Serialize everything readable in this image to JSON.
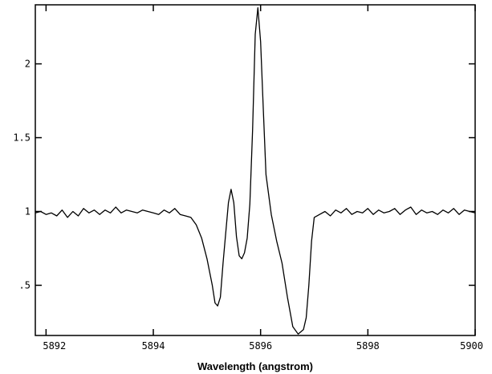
{
  "chart_data": {
    "type": "line",
    "title": "",
    "xlabel": "Wavelength (angstrom)",
    "ylabel": "",
    "xlim": [
      5891.8,
      5900
    ],
    "ylim": [
      0.16,
      2.4
    ],
    "grid": false,
    "x_ticks": [
      5892,
      5894,
      5896,
      5898,
      5900
    ],
    "x_tick_labels": [
      "5892",
      "5894",
      "5896",
      "5898",
      "5900"
    ],
    "y_ticks": [
      0.5,
      1,
      1.5,
      2
    ],
    "y_tick_labels": [
      ".5",
      "1",
      "1.5",
      "2"
    ],
    "series": [
      {
        "color": "#000000",
        "x": [
          5891.8,
          5891.9,
          5892.0,
          5892.1,
          5892.2,
          5892.3,
          5892.4,
          5892.5,
          5892.6,
          5892.7,
          5892.8,
          5892.9,
          5893.0,
          5893.1,
          5893.2,
          5893.3,
          5893.4,
          5893.5,
          5893.6,
          5893.7,
          5893.8,
          5893.9,
          5894.0,
          5894.1,
          5894.2,
          5894.3,
          5894.4,
          5894.5,
          5894.6,
          5894.7,
          5894.8,
          5894.9,
          5895.0,
          5895.1,
          5895.15,
          5895.2,
          5895.25,
          5895.3,
          5895.4,
          5895.45,
          5895.5,
          5895.55,
          5895.6,
          5895.65,
          5895.7,
          5895.75,
          5895.8,
          5895.85,
          5895.9,
          5895.95,
          5896.0,
          5896.05,
          5896.1,
          5896.2,
          5896.3,
          5896.4,
          5896.5,
          5896.6,
          5896.7,
          5896.8,
          5896.85,
          5896.9,
          5896.95,
          5897.0,
          5897.1,
          5897.2,
          5897.3,
          5897.4,
          5897.5,
          5897.6,
          5897.7,
          5897.8,
          5897.9,
          5898.0,
          5898.1,
          5898.2,
          5898.3,
          5898.4,
          5898.5,
          5898.6,
          5898.7,
          5898.8,
          5898.9,
          5899.0,
          5899.1,
          5899.2,
          5899.3,
          5899.4,
          5899.5,
          5899.6,
          5899.7,
          5899.8,
          5899.9,
          5900.0
        ],
        "y": [
          0.99,
          1.0,
          0.98,
          0.99,
          0.97,
          1.01,
          0.96,
          1.0,
          0.97,
          1.02,
          0.99,
          1.01,
          0.98,
          1.01,
          0.99,
          1.03,
          0.99,
          1.01,
          1.0,
          0.99,
          1.01,
          1.0,
          0.99,
          0.98,
          1.01,
          0.99,
          1.02,
          0.98,
          0.97,
          0.96,
          0.91,
          0.82,
          0.68,
          0.5,
          0.38,
          0.36,
          0.42,
          0.65,
          1.06,
          1.15,
          1.06,
          0.83,
          0.7,
          0.68,
          0.72,
          0.82,
          1.05,
          1.55,
          2.2,
          2.38,
          2.15,
          1.7,
          1.25,
          0.98,
          0.8,
          0.65,
          0.42,
          0.22,
          0.17,
          0.2,
          0.28,
          0.5,
          0.8,
          0.96,
          0.98,
          1.0,
          0.97,
          1.01,
          0.99,
          1.02,
          0.98,
          1.0,
          0.99,
          1.02,
          0.98,
          1.01,
          0.99,
          1.0,
          1.02,
          0.98,
          1.01,
          1.03,
          0.98,
          1.01,
          0.99,
          1.0,
          0.98,
          1.01,
          0.99,
          1.02,
          0.98,
          1.01,
          1.0,
          0.99
        ]
      }
    ]
  }
}
